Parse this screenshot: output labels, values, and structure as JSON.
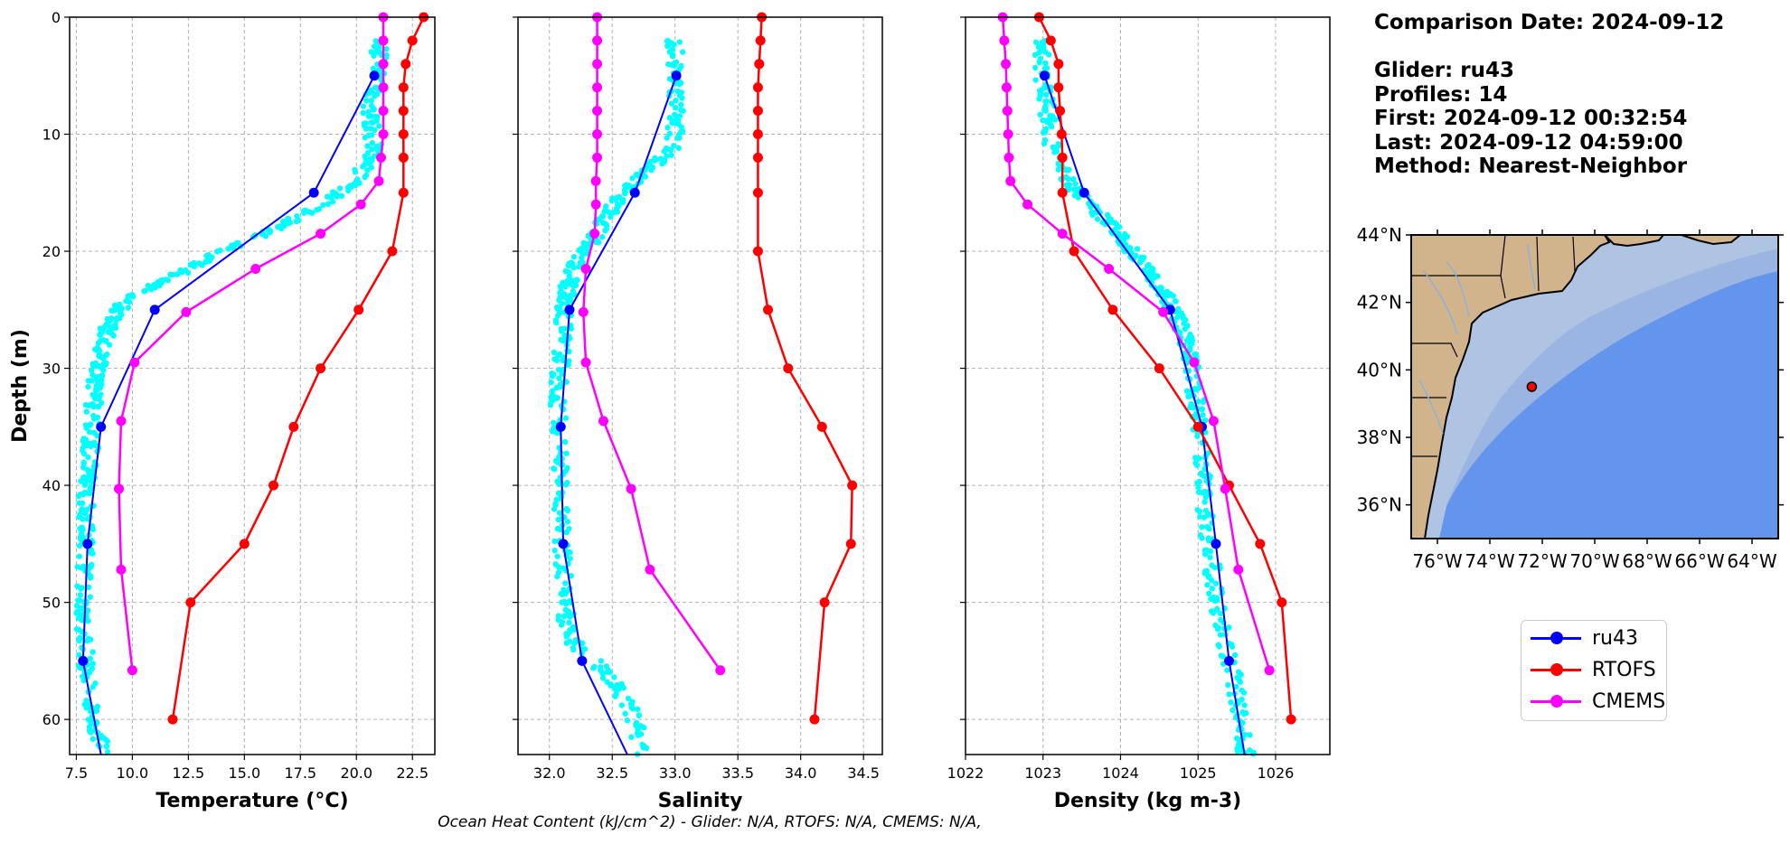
{
  "info": {
    "comparison": "Comparison Date: 2024-09-12",
    "glider": "Glider: ru43",
    "profiles": "Profiles: 14",
    "first": "First: 2024-09-12 00:32:54",
    "last": "Last: 2024-09-12 04:59:00",
    "method": "Method: Nearest-Neighbor"
  },
  "caption": "Ocean Heat Content (kJ/cm^2) - Glider: N/A,  RTOFS: N/A,  CMEMS: N/A,",
  "legend": [
    {
      "name": "ru43",
      "color": "#0000ff"
    },
    {
      "name": "RTOFS",
      "color": "#ff0000"
    },
    {
      "name": "CMEMS",
      "color": "#ff00ff"
    }
  ],
  "chart_data": [
    {
      "type": "line",
      "xlabel": "Temperature (°C)",
      "ylabel": "Depth (m)",
      "xlim": [
        7.2,
        23.5
      ],
      "ylim": [
        63,
        0
      ],
      "xticks": [
        "7.5",
        "10.0",
        "12.5",
        "15.0",
        "17.5",
        "20.0",
        "22.5"
      ],
      "yticks": [
        "0",
        "10",
        "20",
        "30",
        "40",
        "50",
        "60"
      ],
      "grid": true,
      "scatter": {
        "color": "#00ffff",
        "profile": [
          [
            2,
            21.0
          ],
          [
            5,
            21.0
          ],
          [
            8,
            20.6
          ],
          [
            11,
            20.8
          ],
          [
            14,
            20.0
          ],
          [
            16,
            18.5
          ],
          [
            18,
            16.5
          ],
          [
            20,
            14.0
          ],
          [
            22,
            12.0
          ],
          [
            24,
            9.8
          ],
          [
            26,
            9.0
          ],
          [
            28,
            8.7
          ],
          [
            30,
            8.5
          ],
          [
            32,
            8.3
          ],
          [
            35,
            8.2
          ],
          [
            38,
            8.1
          ],
          [
            40,
            8.0
          ],
          [
            43,
            7.9
          ],
          [
            46,
            7.9
          ],
          [
            50,
            7.8
          ],
          [
            53,
            7.8
          ],
          [
            56,
            8.0
          ],
          [
            60,
            8.3
          ],
          [
            63,
            8.7
          ]
        ]
      },
      "series": [
        {
          "name": "ru43",
          "color": "#0000ff",
          "points": [
            [
              20.8,
              5
            ],
            [
              18.1,
              15
            ],
            [
              11.0,
              25
            ],
            [
              8.6,
              35
            ],
            [
              8.0,
              45
            ],
            [
              7.8,
              55
            ]
          ],
          "tail": [
            [
              7.8,
              55
            ],
            [
              8.6,
              63
            ]
          ]
        },
        {
          "name": "RTOFS",
          "color": "#ff0000",
          "points": [
            [
              23.0,
              0
            ],
            [
              22.5,
              2
            ],
            [
              22.2,
              4
            ],
            [
              22.1,
              6
            ],
            [
              22.1,
              8
            ],
            [
              22.1,
              10
            ],
            [
              22.1,
              12
            ],
            [
              22.1,
              15
            ],
            [
              21.6,
              20
            ],
            [
              20.1,
              25
            ],
            [
              18.4,
              30
            ],
            [
              17.2,
              35
            ],
            [
              16.3,
              40
            ],
            [
              15.0,
              45
            ],
            [
              12.6,
              50
            ],
            [
              11.8,
              60
            ]
          ]
        },
        {
          "name": "CMEMS",
          "color": "#ff00ff",
          "points": [
            [
              21.2,
              0
            ],
            [
              21.2,
              2
            ],
            [
              21.2,
              4
            ],
            [
              21.2,
              6
            ],
            [
              21.2,
              8
            ],
            [
              21.2,
              10
            ],
            [
              21.1,
              12
            ],
            [
              21.0,
              14
            ],
            [
              20.2,
              16
            ],
            [
              18.4,
              18.5
            ],
            [
              15.5,
              21.5
            ],
            [
              12.4,
              25.2
            ],
            [
              10.1,
              29.5
            ],
            [
              9.5,
              34.5
            ],
            [
              9.4,
              40.3
            ],
            [
              9.5,
              47.2
            ],
            [
              10.0,
              55.8
            ]
          ]
        }
      ]
    },
    {
      "type": "line",
      "xlabel": "Salinity",
      "ylabel": "",
      "xlim": [
        31.75,
        34.65
      ],
      "ylim": [
        63,
        0
      ],
      "xticks": [
        "32.0",
        "32.5",
        "33.0",
        "33.5",
        "34.0",
        "34.5"
      ],
      "yticks": [],
      "grid": true,
      "scatter": {
        "color": "#00ffff",
        "profile": [
          [
            2,
            33.0
          ],
          [
            5,
            33.0
          ],
          [
            8,
            33.0
          ],
          [
            11,
            33.0
          ],
          [
            13,
            32.8
          ],
          [
            15,
            32.6
          ],
          [
            17,
            32.45
          ],
          [
            19,
            32.35
          ],
          [
            21,
            32.2
          ],
          [
            23,
            32.15
          ],
          [
            25,
            32.12
          ],
          [
            28,
            32.1
          ],
          [
            31,
            32.08
          ],
          [
            34,
            32.07
          ],
          [
            38,
            32.08
          ],
          [
            42,
            32.1
          ],
          [
            46,
            32.1
          ],
          [
            50,
            32.12
          ],
          [
            53,
            32.15
          ],
          [
            56,
            32.45
          ],
          [
            59,
            32.65
          ],
          [
            63,
            32.75
          ]
        ]
      },
      "series": [
        {
          "name": "ru43",
          "color": "#0000ff",
          "points": [
            [
              33.01,
              5
            ],
            [
              32.68,
              15
            ],
            [
              32.16,
              25
            ],
            [
              32.09,
              35
            ],
            [
              32.11,
              45
            ],
            [
              32.26,
              55
            ]
          ],
          "tail": [
            [
              32.26,
              55
            ],
            [
              32.62,
              63
            ]
          ]
        },
        {
          "name": "RTOFS",
          "color": "#ff0000",
          "points": [
            [
              33.69,
              0
            ],
            [
              33.68,
              2
            ],
            [
              33.67,
              4
            ],
            [
              33.66,
              6
            ],
            [
              33.66,
              8
            ],
            [
              33.66,
              10
            ],
            [
              33.66,
              12
            ],
            [
              33.66,
              15
            ],
            [
              33.66,
              20
            ],
            [
              33.74,
              25
            ],
            [
              33.9,
              30
            ],
            [
              34.17,
              35
            ],
            [
              34.41,
              40
            ],
            [
              34.4,
              45
            ],
            [
              34.19,
              50
            ],
            [
              34.11,
              60
            ]
          ]
        },
        {
          "name": "CMEMS",
          "color": "#ff00ff",
          "points": [
            [
              32.38,
              0
            ],
            [
              32.38,
              2
            ],
            [
              32.38,
              4
            ],
            [
              32.38,
              6
            ],
            [
              32.38,
              8
            ],
            [
              32.38,
              10
            ],
            [
              32.38,
              12
            ],
            [
              32.37,
              14
            ],
            [
              32.37,
              16
            ],
            [
              32.36,
              18.5
            ],
            [
              32.29,
              21.5
            ],
            [
              32.27,
              25.2
            ],
            [
              32.29,
              29.5
            ],
            [
              32.43,
              34.5
            ],
            [
              32.65,
              40.3
            ],
            [
              32.8,
              47.2
            ],
            [
              33.36,
              55.8
            ]
          ]
        }
      ]
    },
    {
      "type": "line",
      "xlabel": "Density (kg m-3)",
      "ylabel": "",
      "xlim": [
        1022.0,
        1026.7
      ],
      "ylim": [
        63,
        0
      ],
      "xticks": [
        "1022",
        "1023",
        "1024",
        "1025",
        "1026"
      ],
      "yticks": [],
      "grid": true,
      "scatter": {
        "color": "#00ffff",
        "profile": [
          [
            2,
            1022.95
          ],
          [
            5,
            1023.0
          ],
          [
            8,
            1023.05
          ],
          [
            11,
            1023.1
          ],
          [
            14,
            1023.3
          ],
          [
            16,
            1023.6
          ],
          [
            18,
            1023.9
          ],
          [
            20,
            1024.15
          ],
          [
            22,
            1024.4
          ],
          [
            24,
            1024.6
          ],
          [
            26,
            1024.75
          ],
          [
            28,
            1024.85
          ],
          [
            30,
            1024.92
          ],
          [
            33,
            1024.98
          ],
          [
            36,
            1025.02
          ],
          [
            40,
            1025.06
          ],
          [
            44,
            1025.12
          ],
          [
            48,
            1025.2
          ],
          [
            52,
            1025.3
          ],
          [
            56,
            1025.45
          ],
          [
            60,
            1025.55
          ],
          [
            63,
            1025.62
          ]
        ]
      },
      "series": [
        {
          "name": "ru43",
          "color": "#0000ff",
          "points": [
            [
              1023.02,
              5
            ],
            [
              1023.53,
              15
            ],
            [
              1024.64,
              25
            ],
            [
              1025.05,
              35
            ],
            [
              1025.23,
              45
            ],
            [
              1025.4,
              55
            ]
          ],
          "tail": [
            [
              1025.4,
              55
            ],
            [
              1025.6,
              63
            ]
          ]
        },
        {
          "name": "RTOFS",
          "color": "#ff0000",
          "points": [
            [
              1022.95,
              0
            ],
            [
              1023.1,
              2
            ],
            [
              1023.2,
              4
            ],
            [
              1023.2,
              6
            ],
            [
              1023.22,
              8
            ],
            [
              1023.24,
              10
            ],
            [
              1023.25,
              12
            ],
            [
              1023.25,
              15
            ],
            [
              1023.4,
              20
            ],
            [
              1023.9,
              25
            ],
            [
              1024.5,
              30
            ],
            [
              1025.0,
              35
            ],
            [
              1025.4,
              40
            ],
            [
              1025.8,
              45
            ],
            [
              1026.08,
              50
            ],
            [
              1026.2,
              60
            ]
          ]
        },
        {
          "name": "CMEMS",
          "color": "#ff00ff",
          "points": [
            [
              1022.48,
              0
            ],
            [
              1022.5,
              2
            ],
            [
              1022.52,
              4
            ],
            [
              1022.53,
              6
            ],
            [
              1022.54,
              8
            ],
            [
              1022.55,
              10
            ],
            [
              1022.56,
              12
            ],
            [
              1022.58,
              14
            ],
            [
              1022.8,
              16
            ],
            [
              1023.25,
              18.5
            ],
            [
              1023.85,
              21.5
            ],
            [
              1024.55,
              25.2
            ],
            [
              1024.95,
              29.5
            ],
            [
              1025.2,
              34.5
            ],
            [
              1025.35,
              40.3
            ],
            [
              1025.52,
              47.2
            ],
            [
              1025.92,
              55.8
            ]
          ]
        }
      ]
    }
  ],
  "map": {
    "lat_labels": [
      "44°N",
      "42°N",
      "40°N",
      "38°N",
      "36°N"
    ],
    "lon_labels": [
      "76°W",
      "74°W",
      "72°W",
      "70°W",
      "68°W",
      "66°W",
      "64°W"
    ],
    "lon_range": [
      -77,
      -63
    ],
    "lat_range": [
      35,
      44
    ],
    "glider_position": [
      -72.4,
      39.5
    ],
    "colors": {
      "land": "#d2b48c",
      "shelf": "#aec4e2",
      "mid": "#9ab5e2",
      "deep": "#6495ed",
      "marker": "#ff0000"
    }
  }
}
